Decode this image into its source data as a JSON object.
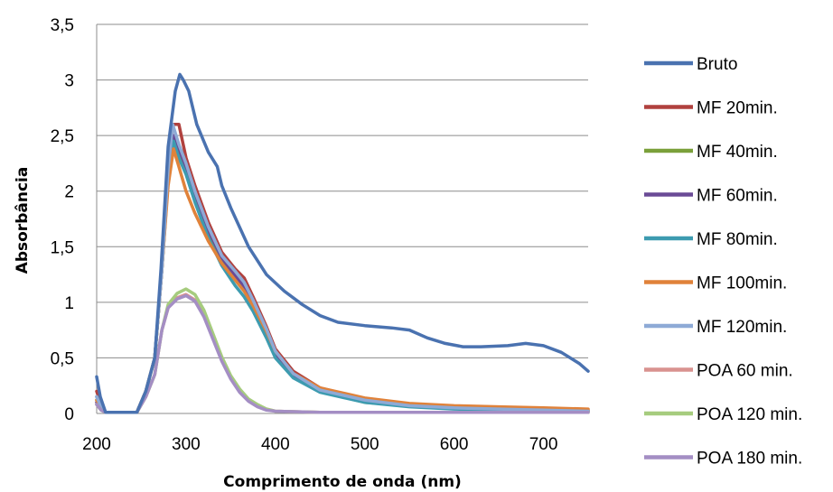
{
  "chart_data": {
    "type": "line",
    "title": "",
    "xlabel": "Comprimento de onda (nm)",
    "ylabel": "Absorbância",
    "xlim": [
      200,
      750
    ],
    "ylim": [
      0,
      3.5
    ],
    "x_ticks": [
      200,
      300,
      400,
      500,
      600,
      700
    ],
    "y_ticks": [
      0,
      0.5,
      1,
      1.5,
      2,
      2.5,
      3,
      3.5
    ],
    "x_tick_labels": [
      "200",
      "300",
      "400",
      "500",
      "600",
      "700"
    ],
    "y_tick_labels": [
      "0",
      "0,5",
      "1",
      "1,5",
      "2",
      "2,5",
      "3",
      "3,5"
    ],
    "grid": "horizontal",
    "legend_position": "right",
    "series": [
      {
        "name": "Bruto",
        "color": "#4a72b0",
        "points": [
          [
            200,
            0.33
          ],
          [
            204,
            0.15
          ],
          [
            207,
            0.08
          ],
          [
            210,
            0.01
          ],
          [
            245,
            0.01
          ],
          [
            255,
            0.2
          ],
          [
            265,
            0.5
          ],
          [
            272,
            1.3
          ],
          [
            280,
            2.4
          ],
          [
            288,
            2.9
          ],
          [
            293,
            3.05
          ],
          [
            297,
            3.0
          ],
          [
            303,
            2.9
          ],
          [
            312,
            2.6
          ],
          [
            325,
            2.35
          ],
          [
            335,
            2.22
          ],
          [
            340,
            2.05
          ],
          [
            350,
            1.85
          ],
          [
            370,
            1.5
          ],
          [
            390,
            1.25
          ],
          [
            410,
            1.1
          ],
          [
            430,
            0.98
          ],
          [
            450,
            0.88
          ],
          [
            470,
            0.82
          ],
          [
            500,
            0.79
          ],
          [
            530,
            0.77
          ],
          [
            550,
            0.75
          ],
          [
            570,
            0.68
          ],
          [
            590,
            0.63
          ],
          [
            610,
            0.6
          ],
          [
            630,
            0.6
          ],
          [
            660,
            0.61
          ],
          [
            680,
            0.63
          ],
          [
            700,
            0.61
          ],
          [
            720,
            0.55
          ],
          [
            740,
            0.45
          ],
          [
            750,
            0.38
          ]
        ]
      },
      {
        "name": "MF 20min.",
        "color": "#b0413e",
        "points": [
          [
            200,
            0.2
          ],
          [
            205,
            0.08
          ],
          [
            210,
            0.01
          ],
          [
            245,
            0.01
          ],
          [
            255,
            0.2
          ],
          [
            265,
            0.5
          ],
          [
            273,
            1.3
          ],
          [
            280,
            2.2
          ],
          [
            285,
            2.6
          ],
          [
            292,
            2.6
          ],
          [
            300,
            2.3
          ],
          [
            310,
            2.05
          ],
          [
            325,
            1.72
          ],
          [
            340,
            1.45
          ],
          [
            355,
            1.3
          ],
          [
            365,
            1.22
          ],
          [
            375,
            1.05
          ],
          [
            390,
            0.78
          ],
          [
            400,
            0.58
          ],
          [
            420,
            0.38
          ],
          [
            450,
            0.23
          ],
          [
            500,
            0.13
          ],
          [
            550,
            0.08
          ],
          [
            600,
            0.06
          ],
          [
            650,
            0.05
          ],
          [
            700,
            0.04
          ],
          [
            750,
            0.03
          ]
        ]
      },
      {
        "name": "MF 40min.",
        "color": "#7aa03a",
        "points": [
          [
            200,
            0.12
          ],
          [
            205,
            0.05
          ],
          [
            210,
            0.01
          ],
          [
            245,
            0.01
          ],
          [
            255,
            0.2
          ],
          [
            265,
            0.5
          ],
          [
            273,
            1.3
          ],
          [
            280,
            2.1
          ],
          [
            286,
            2.45
          ],
          [
            292,
            2.35
          ],
          [
            300,
            2.2
          ],
          [
            310,
            1.95
          ],
          [
            325,
            1.62
          ],
          [
            340,
            1.38
          ],
          [
            355,
            1.22
          ],
          [
            365,
            1.12
          ],
          [
            375,
            0.98
          ],
          [
            390,
            0.72
          ],
          [
            400,
            0.52
          ],
          [
            420,
            0.33
          ],
          [
            450,
            0.2
          ],
          [
            500,
            0.1
          ],
          [
            550,
            0.07
          ],
          [
            600,
            0.05
          ],
          [
            650,
            0.04
          ],
          [
            700,
            0.03
          ],
          [
            750,
            0.02
          ]
        ]
      },
      {
        "name": "MF 60min.",
        "color": "#6a4a96",
        "points": [
          [
            200,
            0.1
          ],
          [
            205,
            0.05
          ],
          [
            210,
            0.01
          ],
          [
            245,
            0.01
          ],
          [
            255,
            0.2
          ],
          [
            265,
            0.5
          ],
          [
            273,
            1.3
          ],
          [
            280,
            2.15
          ],
          [
            286,
            2.5
          ],
          [
            292,
            2.38
          ],
          [
            300,
            2.22
          ],
          [
            310,
            1.98
          ],
          [
            325,
            1.65
          ],
          [
            340,
            1.4
          ],
          [
            355,
            1.24
          ],
          [
            365,
            1.14
          ],
          [
            375,
            0.99
          ],
          [
            390,
            0.73
          ],
          [
            400,
            0.53
          ],
          [
            420,
            0.34
          ],
          [
            450,
            0.2
          ],
          [
            500,
            0.11
          ],
          [
            550,
            0.07
          ],
          [
            600,
            0.05
          ],
          [
            650,
            0.04
          ],
          [
            700,
            0.03
          ],
          [
            750,
            0.02
          ]
        ]
      },
      {
        "name": "MF 80min.",
        "color": "#3d9bb0",
        "points": [
          [
            200,
            0.15
          ],
          [
            205,
            0.06
          ],
          [
            210,
            0.01
          ],
          [
            245,
            0.01
          ],
          [
            255,
            0.2
          ],
          [
            265,
            0.5
          ],
          [
            273,
            1.3
          ],
          [
            280,
            2.1
          ],
          [
            286,
            2.45
          ],
          [
            292,
            2.3
          ],
          [
            300,
            2.15
          ],
          [
            310,
            1.9
          ],
          [
            325,
            1.58
          ],
          [
            340,
            1.33
          ],
          [
            355,
            1.15
          ],
          [
            365,
            1.05
          ],
          [
            375,
            0.92
          ],
          [
            390,
            0.68
          ],
          [
            400,
            0.5
          ],
          [
            420,
            0.32
          ],
          [
            450,
            0.19
          ],
          [
            500,
            0.1
          ],
          [
            550,
            0.06
          ],
          [
            600,
            0.04
          ],
          [
            650,
            0.03
          ],
          [
            700,
            0.03
          ],
          [
            750,
            0.02
          ]
        ]
      },
      {
        "name": "MF 100min.",
        "color": "#e0823a",
        "points": [
          [
            200,
            0.12
          ],
          [
            205,
            0.05
          ],
          [
            210,
            0.01
          ],
          [
            245,
            0.01
          ],
          [
            255,
            0.2
          ],
          [
            265,
            0.5
          ],
          [
            273,
            1.3
          ],
          [
            280,
            2.05
          ],
          [
            286,
            2.38
          ],
          [
            292,
            2.22
          ],
          [
            300,
            2.0
          ],
          [
            310,
            1.8
          ],
          [
            325,
            1.55
          ],
          [
            340,
            1.35
          ],
          [
            355,
            1.2
          ],
          [
            365,
            1.1
          ],
          [
            375,
            0.97
          ],
          [
            390,
            0.74
          ],
          [
            400,
            0.56
          ],
          [
            420,
            0.36
          ],
          [
            450,
            0.23
          ],
          [
            500,
            0.14
          ],
          [
            550,
            0.09
          ],
          [
            600,
            0.07
          ],
          [
            650,
            0.06
          ],
          [
            700,
            0.05
          ],
          [
            750,
            0.04
          ]
        ]
      },
      {
        "name": "MF 120min.",
        "color": "#8eaad6",
        "points": [
          [
            200,
            0.15
          ],
          [
            205,
            0.06
          ],
          [
            210,
            0.01
          ],
          [
            245,
            0.01
          ],
          [
            255,
            0.2
          ],
          [
            265,
            0.5
          ],
          [
            273,
            1.3
          ],
          [
            280,
            2.2
          ],
          [
            285,
            2.6
          ],
          [
            292,
            2.42
          ],
          [
            300,
            2.25
          ],
          [
            310,
            2.0
          ],
          [
            325,
            1.68
          ],
          [
            340,
            1.42
          ],
          [
            355,
            1.28
          ],
          [
            365,
            1.18
          ],
          [
            375,
            1.02
          ],
          [
            390,
            0.76
          ],
          [
            400,
            0.56
          ],
          [
            420,
            0.36
          ],
          [
            450,
            0.21
          ],
          [
            500,
            0.12
          ],
          [
            550,
            0.07
          ],
          [
            600,
            0.05
          ],
          [
            650,
            0.04
          ],
          [
            700,
            0.03
          ],
          [
            750,
            0.02
          ]
        ]
      },
      {
        "name": "POA 60 min.",
        "color": "#d9928f",
        "points": [
          [
            200,
            0.08
          ],
          [
            205,
            0.03
          ],
          [
            210,
            0.01
          ],
          [
            245,
            0.01
          ],
          [
            255,
            0.15
          ],
          [
            265,
            0.35
          ],
          [
            273,
            0.75
          ],
          [
            280,
            0.95
          ],
          [
            290,
            1.04
          ],
          [
            300,
            1.07
          ],
          [
            310,
            1.02
          ],
          [
            320,
            0.88
          ],
          [
            330,
            0.68
          ],
          [
            340,
            0.48
          ],
          [
            350,
            0.32
          ],
          [
            360,
            0.2
          ],
          [
            370,
            0.12
          ],
          [
            380,
            0.07
          ],
          [
            390,
            0.04
          ],
          [
            400,
            0.02
          ],
          [
            450,
            0.01
          ],
          [
            750,
            0.01
          ]
        ]
      },
      {
        "name": "POA 120 min.",
        "color": "#a6cc7e",
        "points": [
          [
            200,
            0.08
          ],
          [
            205,
            0.03
          ],
          [
            210,
            0.01
          ],
          [
            245,
            0.01
          ],
          [
            255,
            0.15
          ],
          [
            265,
            0.35
          ],
          [
            273,
            0.75
          ],
          [
            280,
            0.98
          ],
          [
            290,
            1.08
          ],
          [
            300,
            1.12
          ],
          [
            310,
            1.07
          ],
          [
            320,
            0.93
          ],
          [
            330,
            0.72
          ],
          [
            340,
            0.51
          ],
          [
            350,
            0.34
          ],
          [
            360,
            0.22
          ],
          [
            370,
            0.13
          ],
          [
            380,
            0.08
          ],
          [
            390,
            0.04
          ],
          [
            400,
            0.02
          ],
          [
            450,
            0.01
          ],
          [
            750,
            0.01
          ]
        ]
      },
      {
        "name": "POA 180 min.",
        "color": "#a48ec4",
        "points": [
          [
            200,
            0.08
          ],
          [
            205,
            0.03
          ],
          [
            210,
            0.01
          ],
          [
            245,
            0.01
          ],
          [
            255,
            0.15
          ],
          [
            265,
            0.35
          ],
          [
            273,
            0.75
          ],
          [
            280,
            0.95
          ],
          [
            290,
            1.03
          ],
          [
            300,
            1.06
          ],
          [
            310,
            1.01
          ],
          [
            320,
            0.87
          ],
          [
            330,
            0.67
          ],
          [
            340,
            0.47
          ],
          [
            350,
            0.31
          ],
          [
            360,
            0.19
          ],
          [
            370,
            0.11
          ],
          [
            380,
            0.06
          ],
          [
            390,
            0.03
          ],
          [
            400,
            0.02
          ],
          [
            450,
            0.01
          ],
          [
            750,
            0.01
          ]
        ]
      }
    ]
  }
}
